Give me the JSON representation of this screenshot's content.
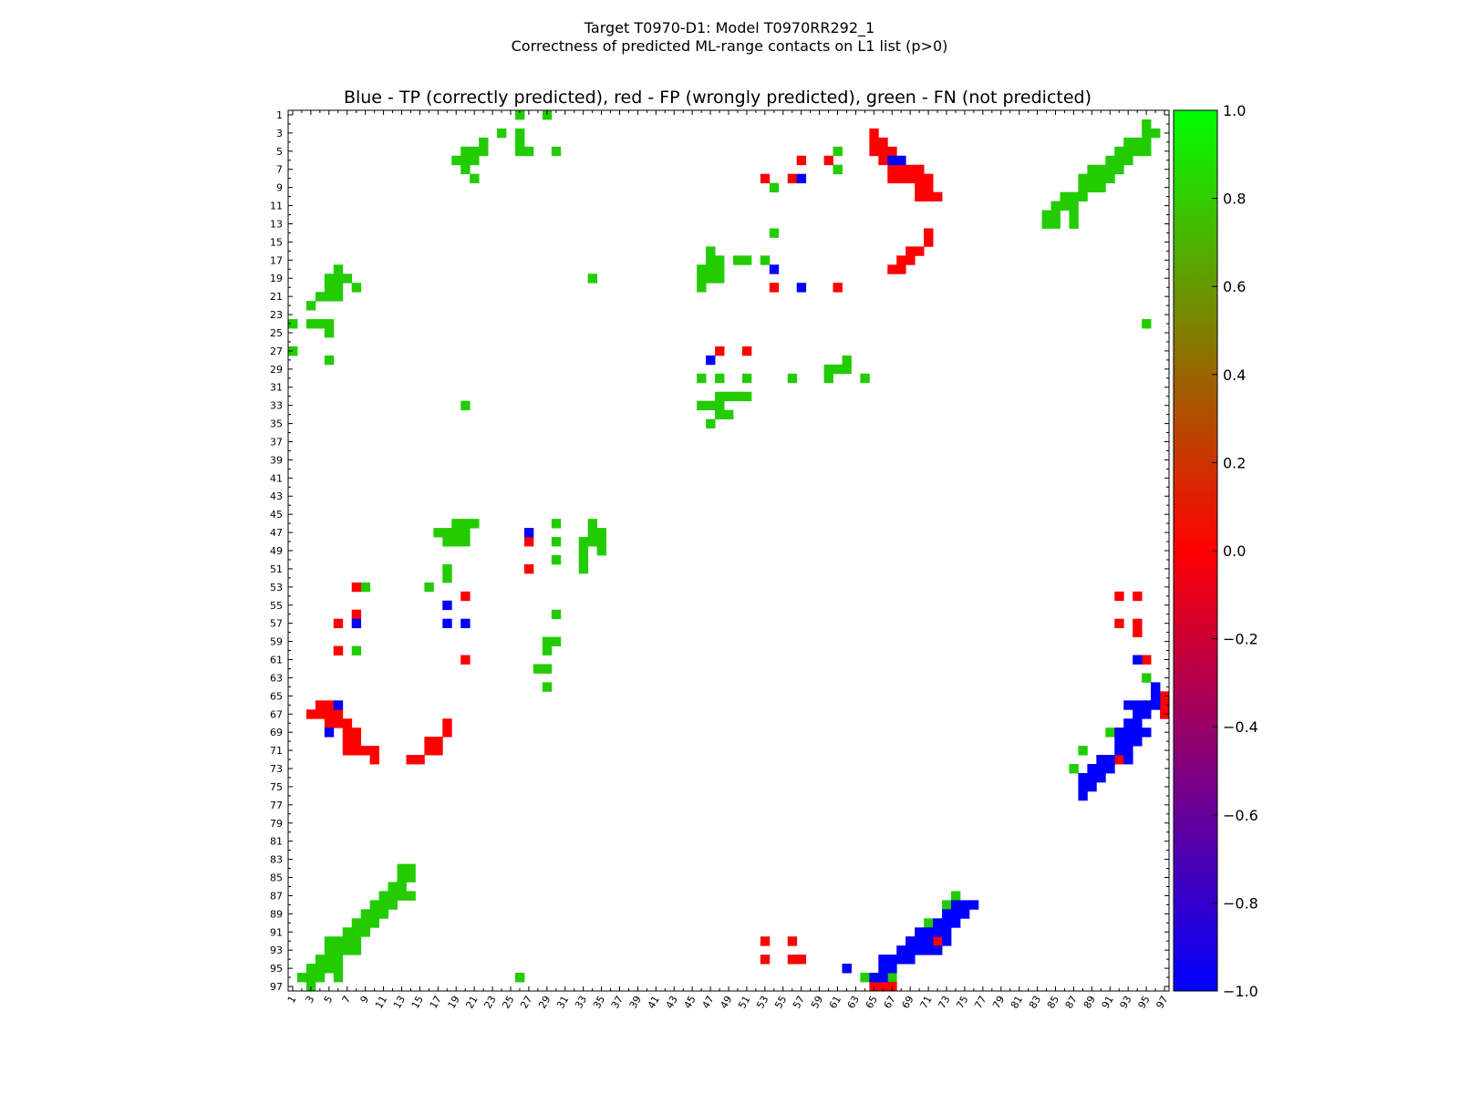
{
  "figure": {
    "suptitle_line1": "Target T0970-D1: Model T0970RR292_1",
    "suptitle_line2": "Correctness of predicted ML-range contacts on L1 list (p>0)"
  },
  "colors": {
    "tp": "#0000ff",
    "fp": "#ff0000",
    "fn": "#22cc00",
    "background": "#ffffff",
    "axes": "#000000"
  },
  "chart_data": {
    "type": "heatmap",
    "title": "Blue - TP (correctly predicted), red - FP (wrongly predicted), green - FN (not predicted)",
    "xlabel": "",
    "ylabel": "",
    "n": 97,
    "xlim": [
      1,
      97
    ],
    "ylim": [
      97,
      1
    ],
    "x_tick_labels": [
      "1",
      "3",
      "5",
      "7",
      "9",
      "11",
      "13",
      "15",
      "17",
      "19",
      "21",
      "23",
      "25",
      "27",
      "29",
      "31",
      "33",
      "35",
      "37",
      "39",
      "41",
      "43",
      "45",
      "47",
      "49",
      "51",
      "53",
      "55",
      "57",
      "59",
      "61",
      "63",
      "65",
      "67",
      "69",
      "71",
      "73",
      "75",
      "77",
      "79",
      "81",
      "83",
      "85",
      "87",
      "89",
      "91",
      "93",
      "95",
      "97"
    ],
    "y_tick_labels": [
      "1",
      "3",
      "5",
      "7",
      "9",
      "11",
      "13",
      "15",
      "17",
      "19",
      "21",
      "23",
      "25",
      "27",
      "29",
      "31",
      "33",
      "35",
      "37",
      "39",
      "41",
      "43",
      "45",
      "47",
      "49",
      "51",
      "53",
      "55",
      "57",
      "59",
      "61",
      "63",
      "65",
      "67",
      "69",
      "71",
      "73",
      "75",
      "77",
      "79",
      "81",
      "83",
      "85",
      "87",
      "89",
      "91",
      "93",
      "95",
      "97"
    ],
    "value_legend": {
      "tp": -1.0,
      "fp": 0.0,
      "fn": 1.0
    },
    "colorbar": {
      "range": [
        -1.0,
        1.0
      ],
      "ticks": [
        "1.0",
        "0.8",
        "0.6",
        "0.4",
        "0.2",
        "0.0",
        "−0.2",
        "−0.4",
        "−0.6",
        "−0.8",
        "−1.0"
      ]
    },
    "tp_cells": [
      [
        6,
        68
      ],
      [
        6,
        67
      ],
      [
        57,
        8
      ],
      [
        57,
        18
      ],
      [
        57,
        20
      ],
      [
        28,
        47
      ],
      [
        55,
        18
      ],
      [
        8,
        57
      ],
      [
        18,
        54
      ],
      [
        20,
        57
      ],
      [
        47,
        27
      ],
      [
        66,
        6
      ],
      [
        69,
        5
      ],
      [
        61,
        94
      ],
      [
        95,
        62
      ],
      [
        96,
        65
      ],
      [
        96,
        66
      ],
      [
        95,
        66
      ],
      [
        95,
        67
      ],
      [
        94,
        66
      ],
      [
        94,
        67
      ],
      [
        94,
        68
      ],
      [
        94,
        69
      ],
      [
        93,
        68
      ],
      [
        93,
        69
      ],
      [
        93,
        70
      ],
      [
        93,
        71
      ],
      [
        93,
        72
      ],
      [
        92,
        69
      ],
      [
        92,
        70
      ],
      [
        92,
        71
      ],
      [
        92,
        73
      ],
      [
        91,
        70
      ],
      [
        91,
        71
      ],
      [
        91,
        72
      ],
      [
        91,
        73
      ],
      [
        90,
        72
      ],
      [
        90,
        73
      ],
      [
        90,
        74
      ],
      [
        89,
        73
      ],
      [
        89,
        74
      ],
      [
        89,
        75
      ],
      [
        88,
        74
      ],
      [
        88,
        75
      ],
      [
        88,
        76
      ],
      [
        64,
        96
      ],
      [
        65,
        96
      ],
      [
        66,
        95
      ],
      [
        66,
        96
      ],
      [
        67,
        95
      ],
      [
        66,
        94
      ],
      [
        66,
        93
      ],
      [
        67,
        94
      ],
      [
        68,
        93
      ],
      [
        68,
        94
      ],
      [
        69,
        92
      ],
      [
        69,
        93
      ],
      [
        69,
        94
      ],
      [
        69,
        95
      ],
      [
        70,
        92
      ],
      [
        70,
        93
      ],
      [
        70,
        94
      ],
      [
        71,
        92
      ],
      [
        71,
        93
      ],
      [
        72,
        90
      ],
      [
        72,
        91
      ],
      [
        72,
        93
      ],
      [
        73,
        89
      ],
      [
        73,
        90
      ],
      [
        73,
        91
      ],
      [
        74,
        88
      ],
      [
        74,
        89
      ],
      [
        74,
        90
      ],
      [
        75,
        88
      ],
      [
        75,
        89
      ],
      [
        76,
        88
      ]
    ],
    "fp_cells": [
      [
        6,
        57
      ],
      [
        6,
        60
      ],
      [
        8,
        53
      ],
      [
        8,
        56
      ],
      [
        20,
        54
      ],
      [
        20,
        61
      ],
      [
        27,
        48
      ],
      [
        27,
        51
      ],
      [
        3,
        65
      ],
      [
        4,
        65
      ],
      [
        4,
        66
      ],
      [
        5,
        65
      ],
      [
        5,
        66
      ],
      [
        5,
        67
      ],
      [
        6,
        66
      ],
      [
        6,
        67
      ],
      [
        7,
        67
      ],
      [
        7,
        68
      ],
      [
        7,
        69
      ],
      [
        7,
        70
      ],
      [
        8,
        67
      ],
      [
        8,
        68
      ],
      [
        8,
        69
      ],
      [
        8,
        70
      ],
      [
        8,
        71
      ],
      [
        9,
        70
      ],
      [
        9,
        71
      ],
      [
        10,
        70
      ],
      [
        10,
        71
      ],
      [
        10,
        72
      ],
      [
        14,
        71
      ],
      [
        15,
        71
      ],
      [
        16,
        69
      ],
      [
        16,
        70
      ],
      [
        17,
        68
      ],
      [
        17,
        69
      ],
      [
        18,
        67
      ],
      [
        18,
        68
      ],
      [
        48,
        27
      ],
      [
        51,
        27
      ],
      [
        53,
        8
      ],
      [
        54,
        20
      ],
      [
        56,
        8
      ],
      [
        57,
        6
      ],
      [
        60,
        6
      ],
      [
        61,
        20
      ],
      [
        54,
        92
      ],
      [
        54,
        94
      ],
      [
        57,
        92
      ],
      [
        57,
        94
      ],
      [
        58,
        94
      ],
      [
        61,
        95
      ],
      [
        66,
        4
      ],
      [
        66,
        5
      ],
      [
        67,
        3
      ],
      [
        67,
        4
      ],
      [
        67,
        5
      ],
      [
        67,
        6
      ],
      [
        68,
        5
      ],
      [
        68,
        6
      ],
      [
        68,
        7
      ],
      [
        69,
        7
      ],
      [
        69,
        8
      ],
      [
        70,
        7
      ],
      [
        70,
        8
      ],
      [
        71,
        7
      ],
      [
        71,
        8
      ],
      [
        71,
        9
      ],
      [
        71,
        10
      ],
      [
        72,
        10
      ],
      [
        72,
        14
      ],
      [
        72,
        15
      ],
      [
        71,
        16
      ],
      [
        71,
        17
      ],
      [
        70,
        16
      ],
      [
        70,
        17
      ],
      [
        69,
        18
      ],
      [
        68,
        18
      ],
      [
        65,
        97
      ],
      [
        66,
        97
      ],
      [
        67,
        97
      ],
      [
        69,
        92
      ],
      [
        72,
        92
      ],
      [
        92,
        53
      ],
      [
        92,
        56
      ],
      [
        94,
        53
      ],
      [
        94,
        56
      ],
      [
        94,
        57
      ],
      [
        95,
        62
      ],
      [
        92,
        69
      ],
      [
        92,
        72
      ],
      [
        97,
        65
      ],
      [
        97,
        66
      ],
      [
        97,
        67
      ]
    ],
    "fn_cells": [
      [
        1,
        26
      ],
      [
        1,
        29
      ],
      [
        2,
        95
      ],
      [
        3,
        24
      ],
      [
        3,
        26
      ],
      [
        3,
        95
      ],
      [
        3,
        96
      ],
      [
        4,
        22
      ],
      [
        4,
        26
      ],
      [
        4,
        93
      ],
      [
        4,
        94
      ],
      [
        4,
        95
      ],
      [
        5,
        20
      ],
      [
        5,
        21
      ],
      [
        5,
        22
      ],
      [
        5,
        26
      ],
      [
        5,
        27
      ],
      [
        5,
        30
      ],
      [
        5,
        61
      ],
      [
        5,
        92
      ],
      [
        5,
        93
      ],
      [
        5,
        94
      ],
      [
        5,
        95
      ],
      [
        6,
        19
      ],
      [
        6,
        20
      ],
      [
        6,
        21
      ],
      [
        6,
        91
      ],
      [
        6,
        92
      ],
      [
        6,
        93
      ],
      [
        7,
        20
      ],
      [
        7,
        61
      ],
      [
        7,
        89
      ],
      [
        7,
        90
      ],
      [
        7,
        91
      ],
      [
        7,
        92
      ],
      [
        8,
        21
      ],
      [
        8,
        88
      ],
      [
        8,
        89
      ],
      [
        8,
        90
      ],
      [
        8,
        91
      ],
      [
        9,
        88
      ],
      [
        9,
        89
      ],
      [
        9,
        90
      ],
      [
        9,
        54
      ],
      [
        10,
        86
      ],
      [
        10,
        87
      ],
      [
        10,
        88
      ],
      [
        11,
        85
      ],
      [
        11,
        86
      ],
      [
        11,
        87
      ],
      [
        12,
        84
      ],
      [
        12,
        85
      ],
      [
        12,
        87
      ],
      [
        13,
        84
      ],
      [
        13,
        85
      ],
      [
        13,
        87
      ],
      [
        14,
        54
      ],
      [
        16,
        47
      ],
      [
        17,
        47
      ],
      [
        17,
        48
      ],
      [
        17,
        50
      ],
      [
        17,
        51
      ],
      [
        17,
        53
      ],
      [
        18,
        6
      ],
      [
        18,
        46
      ],
      [
        18,
        47
      ],
      [
        18,
        48
      ],
      [
        19,
        5
      ],
      [
        19,
        6
      ],
      [
        19,
        7
      ],
      [
        19,
        46
      ],
      [
        19,
        47
      ],
      [
        19,
        48
      ],
      [
        19,
        34
      ],
      [
        20,
        5
      ],
      [
        20,
        6
      ],
      [
        20,
        8
      ],
      [
        20,
        46
      ],
      [
        21,
        4
      ],
      [
        21,
        5
      ],
      [
        21,
        6
      ],
      [
        22,
        3
      ],
      [
        24,
        1
      ],
      [
        24,
        3
      ],
      [
        24,
        4
      ],
      [
        24,
        5
      ],
      [
        24,
        95
      ],
      [
        25,
        5
      ],
      [
        27,
        1
      ],
      [
        28,
        5
      ],
      [
        28,
        62
      ],
      [
        29,
        62
      ],
      [
        29,
        60
      ],
      [
        29,
        61
      ],
      [
        30,
        46
      ],
      [
        30,
        48
      ],
      [
        30,
        51
      ],
      [
        30,
        56
      ],
      [
        30,
        60
      ],
      [
        30,
        64
      ],
      [
        32,
        48
      ],
      [
        32,
        49
      ],
      [
        32,
        50
      ],
      [
        32,
        51
      ],
      [
        33,
        46
      ],
      [
        33,
        47
      ],
      [
        33,
        48
      ],
      [
        33,
        20
      ],
      [
        34,
        48
      ],
      [
        34,
        49
      ],
      [
        35,
        47
      ],
      [
        46,
        19
      ],
      [
        46,
        20
      ],
      [
        46,
        21
      ],
      [
        46,
        30
      ],
      [
        46,
        34
      ],
      [
        47,
        17
      ],
      [
        47,
        18
      ],
      [
        47,
        19
      ],
      [
        47,
        20
      ],
      [
        47,
        34
      ],
      [
        47,
        35
      ],
      [
        48,
        18
      ],
      [
        48,
        19
      ],
      [
        48,
        20
      ],
      [
        48,
        30
      ],
      [
        48,
        33
      ],
      [
        48,
        34
      ],
      [
        48,
        35
      ],
      [
        49,
        33
      ],
      [
        49,
        35
      ],
      [
        50,
        33
      ],
      [
        50,
        30
      ],
      [
        51,
        18
      ],
      [
        51,
        33
      ],
      [
        52,
        18
      ],
      [
        53,
        9
      ],
      [
        53,
        16
      ],
      [
        56,
        30
      ],
      [
        59,
        29
      ],
      [
        59,
        30
      ],
      [
        60,
        29
      ],
      [
        60,
        6
      ],
      [
        60,
        8
      ],
      [
        62,
        28
      ],
      [
        62,
        29
      ],
      [
        63,
        95
      ],
      [
        64,
        29
      ],
      [
        66,
        95
      ],
      [
        69,
        91
      ],
      [
        71,
        88
      ],
      [
        73,
        87
      ],
      [
        84,
        13
      ],
      [
        84,
        14
      ],
      [
        85,
        13
      ],
      [
        85,
        14
      ],
      [
        86,
        12
      ],
      [
        86,
        13
      ],
      [
        87,
        11
      ],
      [
        87,
        12
      ],
      [
        87,
        13
      ],
      [
        87,
        14
      ],
      [
        88,
        10
      ],
      [
        88,
        11
      ],
      [
        88,
        12
      ],
      [
        89,
        9
      ],
      [
        89,
        10
      ],
      [
        89,
        11
      ],
      [
        90,
        8
      ],
      [
        90,
        9
      ],
      [
        90,
        10
      ],
      [
        91,
        7
      ],
      [
        91,
        8
      ],
      [
        91,
        9
      ],
      [
        92,
        5
      ],
      [
        92,
        6
      ],
      [
        92,
        7
      ],
      [
        92,
        8
      ],
      [
        93,
        5
      ],
      [
        93,
        6
      ],
      [
        93,
        7
      ],
      [
        93,
        8
      ],
      [
        94,
        4
      ],
      [
        94,
        5
      ],
      [
        94,
        6
      ],
      [
        95,
        3
      ],
      [
        95,
        4
      ],
      [
        95,
        5
      ],
      [
        95,
        6
      ],
      [
        96,
        2
      ],
      [
        96,
        3
      ],
      [
        96,
        4
      ],
      [
        96,
        6
      ],
      [
        96,
        26
      ],
      [
        97,
        3
      ],
      [
        87,
        74
      ],
      [
        88,
        73
      ],
      [
        90,
        71
      ],
      [
        96,
        64
      ],
      [
        96,
        67
      ],
      [
        65,
        96
      ]
    ]
  }
}
